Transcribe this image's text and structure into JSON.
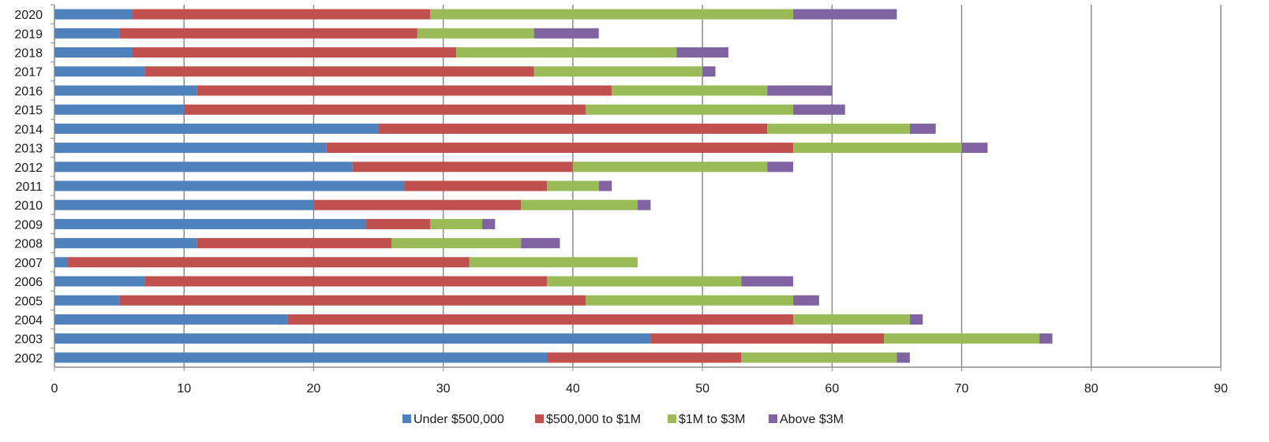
{
  "chart_data": {
    "type": "bar",
    "orientation": "horizontal",
    "stacked": true,
    "categories": [
      "2020",
      "2019",
      "2018",
      "2017",
      "2016",
      "2015",
      "2014",
      "2013",
      "2012",
      "2011",
      "2010",
      "2009",
      "2008",
      "2007",
      "2006",
      "2005",
      "2004",
      "2003",
      "2002"
    ],
    "series": [
      {
        "name": "Under $500,000",
        "color": "#4f81bd",
        "values": [
          6,
          5,
          6,
          7,
          11,
          10,
          25,
          21,
          23,
          27,
          20,
          24,
          11,
          1,
          7,
          5,
          18,
          46,
          38
        ]
      },
      {
        "name": "$500,000 to $1M",
        "color": "#c0504d",
        "values": [
          23,
          23,
          25,
          30,
          32,
          31,
          30,
          36,
          17,
          11,
          16,
          5,
          15,
          31,
          31,
          36,
          39,
          18,
          15
        ]
      },
      {
        "name": "$1M to $3M",
        "color": "#9bbb59",
        "values": [
          28,
          9,
          17,
          13,
          12,
          16,
          11,
          13,
          15,
          4,
          9,
          4,
          10,
          13,
          15,
          16,
          9,
          12,
          12
        ]
      },
      {
        "name": "Above $3M",
        "color": "#8064a2",
        "values": [
          8,
          5,
          4,
          1,
          5,
          4,
          2,
          2,
          2,
          1,
          1,
          1,
          3,
          0,
          4,
          2,
          1,
          1,
          1
        ]
      }
    ],
    "xlim": [
      0,
      90
    ],
    "xticks": [
      "0",
      "10",
      "20",
      "30",
      "40",
      "50",
      "60",
      "70",
      "80",
      "90"
    ],
    "grid": true,
    "legend_position": "bottom"
  }
}
